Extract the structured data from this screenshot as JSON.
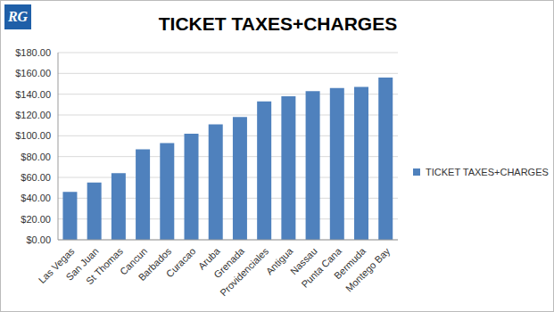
{
  "chart_data": {
    "type": "bar",
    "title": "TICKET TAXES+CHARGES",
    "annotations": [
      "RG"
    ],
    "categories": [
      "Las Vegas",
      "San Juan",
      "St Thomas",
      "Cancun",
      "Barbados",
      "Curacao",
      "Aruba",
      "Grenada",
      "Providenciales",
      "Antigua",
      "Nassau",
      "Punta Cana",
      "Bermuda",
      "Montego Bay"
    ],
    "series": [
      {
        "name": "TICKET TAXES+CHARGES",
        "color": "#4f81bd",
        "values": [
          46,
          55,
          64,
          87,
          93,
          102,
          111,
          118,
          133,
          138,
          143,
          146,
          147,
          156
        ]
      }
    ],
    "ylim": [
      0,
      180
    ],
    "yticks": [
      {
        "value": 0,
        "label": "$0.00"
      },
      {
        "value": 20,
        "label": "$20.00"
      },
      {
        "value": 40,
        "label": "$40.00"
      },
      {
        "value": 60,
        "label": "$60.00"
      },
      {
        "value": 80,
        "label": "$80.00"
      },
      {
        "value": 100,
        "label": "$100.00"
      },
      {
        "value": 120,
        "label": "$120.00"
      },
      {
        "value": 140,
        "label": "$140.00"
      },
      {
        "value": 160,
        "label": "$160.00"
      },
      {
        "value": 180,
        "label": "$180.00"
      }
    ],
    "grid": true,
    "legend": "right"
  }
}
